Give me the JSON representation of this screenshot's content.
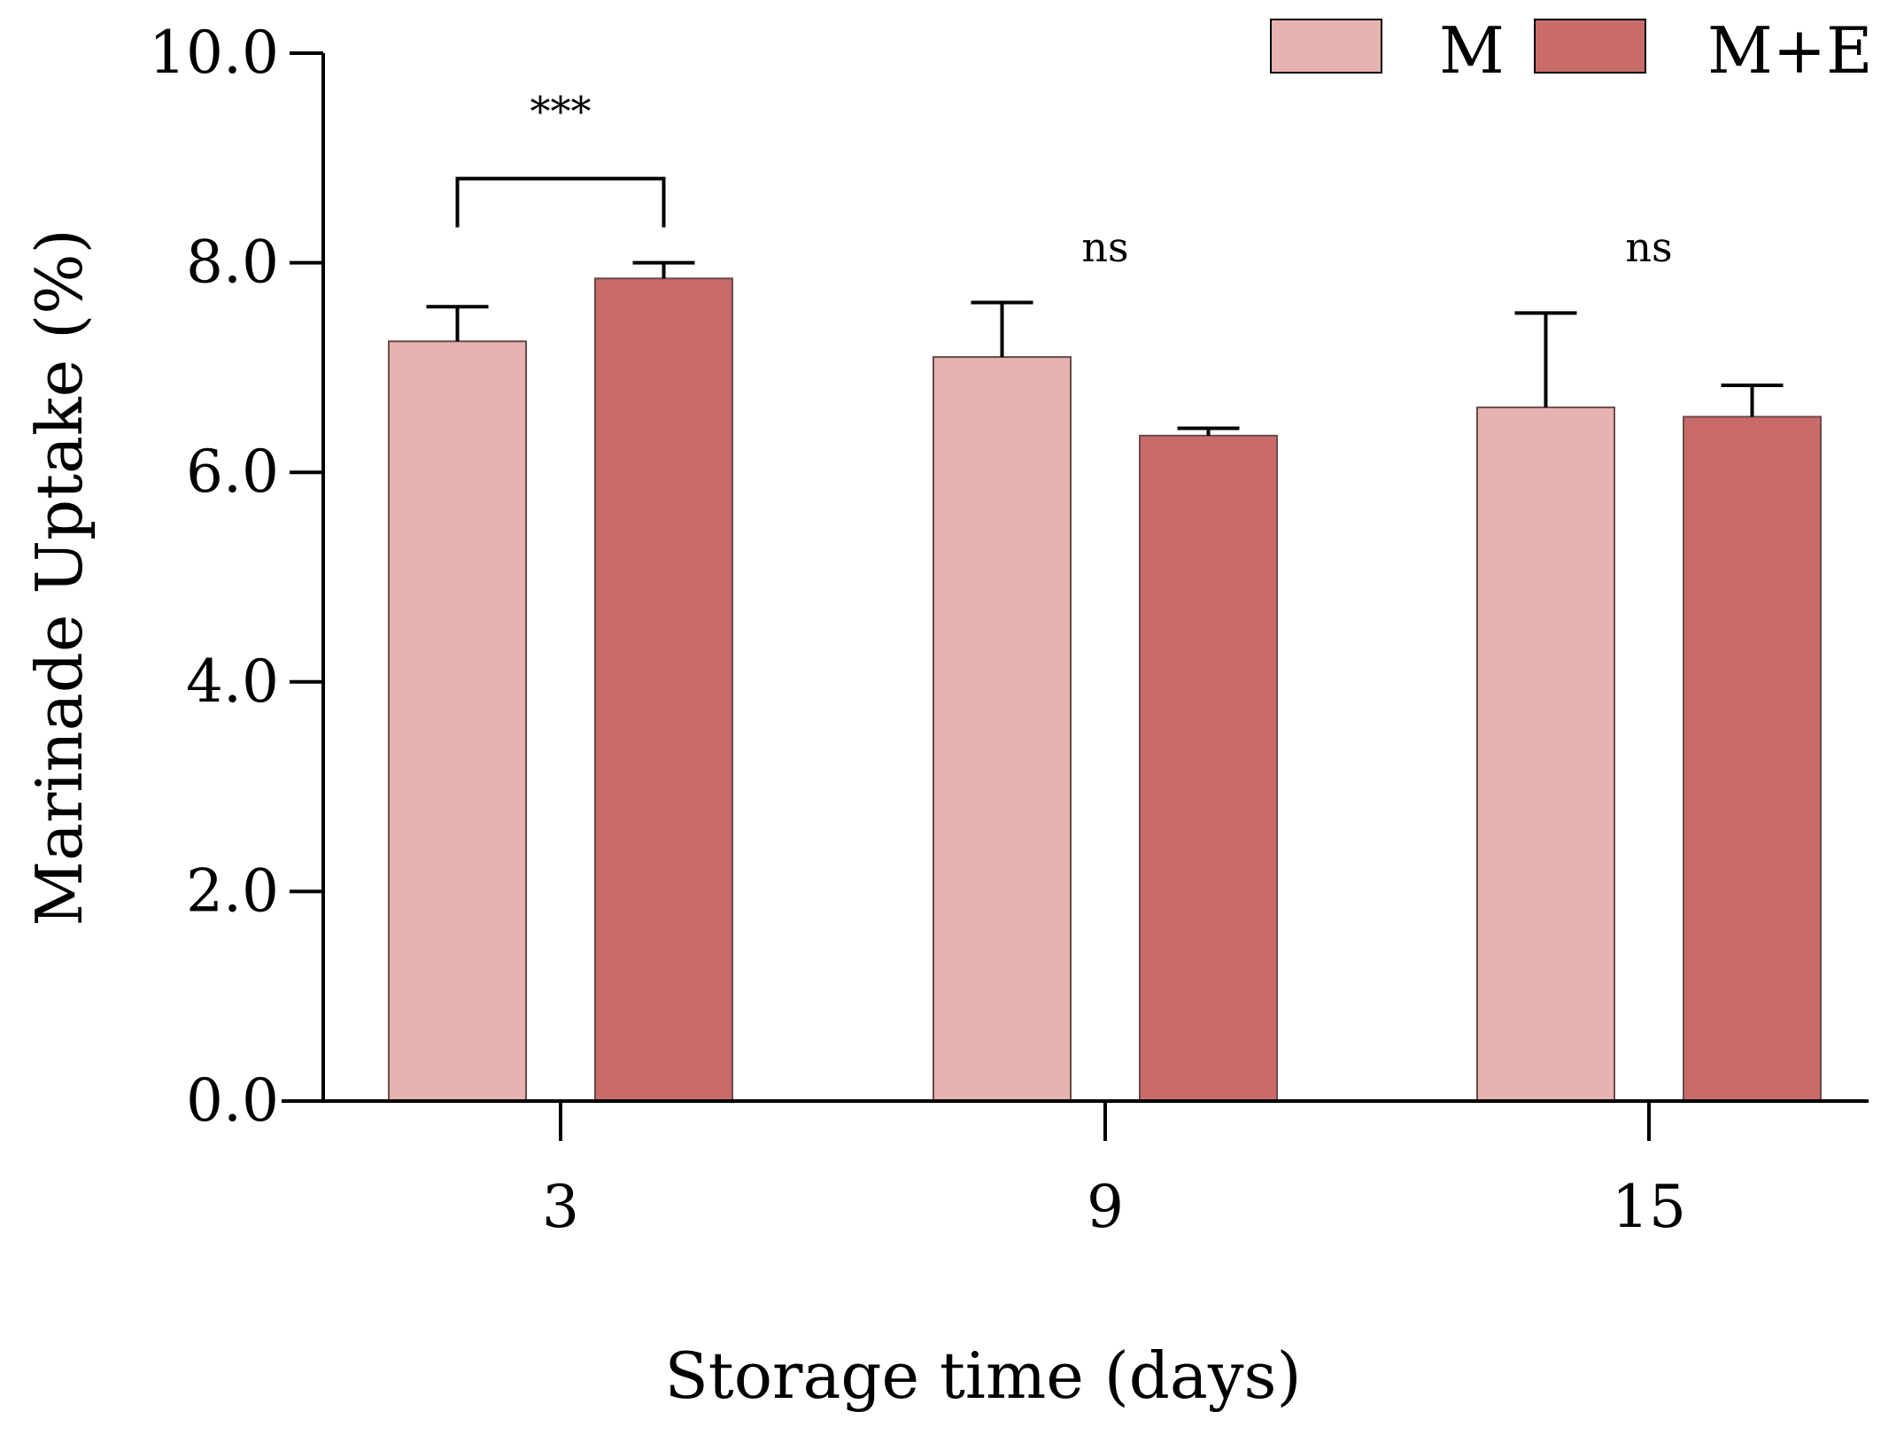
{
  "chart_data": {
    "type": "bar",
    "xlabel": "Storage time (days)",
    "ylabel": "Marinade Uptake (%)",
    "categories": [
      "3",
      "9",
      "15"
    ],
    "ylim": [
      0,
      10
    ],
    "yticks": [
      "0.0",
      "2.0",
      "4.0",
      "6.0",
      "8.0",
      "10.0"
    ],
    "grid": false,
    "legend_position": "top-right",
    "series": [
      {
        "name": "M",
        "color": "#e6b3b0",
        "values": [
          7.25,
          7.1,
          6.62
        ],
        "errors": [
          0.33,
          0.52,
          0.9
        ]
      },
      {
        "name": "M+E",
        "color": "#c96b6a",
        "values": [
          7.85,
          6.35,
          6.53
        ],
        "errors": [
          0.15,
          0.07,
          0.3
        ]
      }
    ],
    "annotations": [
      {
        "category": "3",
        "text": "***",
        "bracket": true
      },
      {
        "category": "9",
        "text": "ns",
        "bracket": false
      },
      {
        "category": "15",
        "text": "ns",
        "bracket": false
      }
    ]
  }
}
